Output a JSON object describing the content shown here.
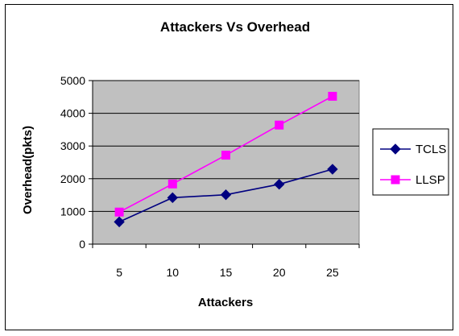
{
  "chart_data": {
    "type": "line",
    "title": "Attackers Vs Overhead",
    "xlabel": "Attackers",
    "ylabel": "Overhead(pkts)",
    "categories": [
      "5",
      "10",
      "15",
      "20",
      "25"
    ],
    "ylim": [
      0,
      5000
    ],
    "yticks": [
      "0",
      "1000",
      "2000",
      "3000",
      "4000",
      "5000"
    ],
    "grid": true,
    "legend_position": "right",
    "plot_background": "#c0c0c0",
    "series": [
      {
        "name": "TCLS",
        "values": [
          680,
          1420,
          1510,
          1830,
          2290
        ],
        "color": "#000080",
        "marker": "diamond"
      },
      {
        "name": "LLSP",
        "values": [
          980,
          1840,
          2720,
          3640,
          4520
        ],
        "color": "#ff00ff",
        "marker": "square"
      }
    ]
  }
}
